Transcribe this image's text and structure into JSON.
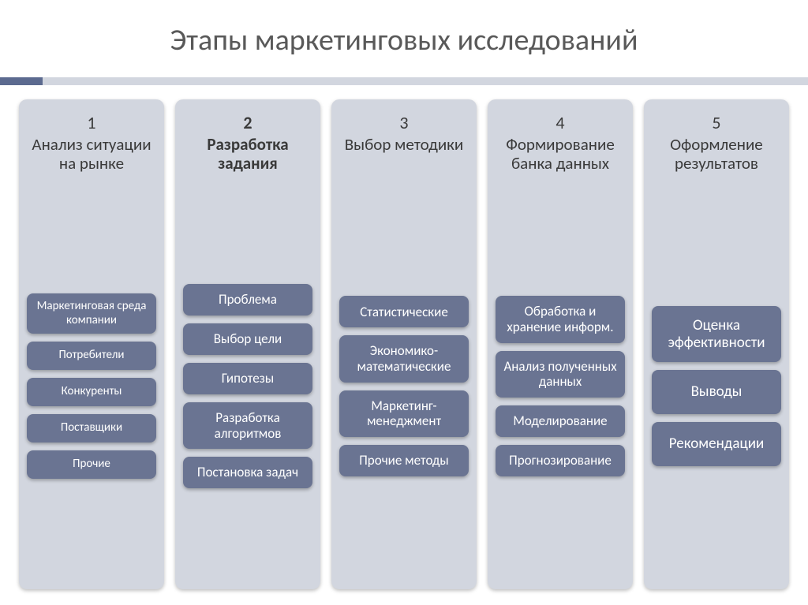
{
  "title": "Этапы маркетинговых исследований",
  "colors": {
    "accent": "#5c6a8f",
    "accent_light": "#d2d6df",
    "col_bg": "#d2d6df",
    "item_bg": "#6a7492",
    "item_text": "#ffffff",
    "title_color": "#595959",
    "head_text": "#3a3a3a"
  },
  "columns": [
    {
      "num": "1",
      "title": "Анализ ситуации на рынке",
      "bold": false,
      "item_size": "small",
      "items": [
        "Маркетинговая среда компании",
        "Потребители",
        "Конкуренты",
        "Поставщики",
        "Прочие"
      ]
    },
    {
      "num": "2",
      "title": "Разработка задания",
      "bold": true,
      "item_size": "normal",
      "items": [
        "Проблема",
        "Выбор цели",
        "Гипотезы",
        "Разработка алгоритмов",
        "Постановка задач"
      ]
    },
    {
      "num": "3",
      "title": "Выбор методики",
      "bold": false,
      "item_size": "normal",
      "items": [
        "Статистические",
        "Экономико-математические",
        "Маркетинг-менеджмент",
        "Прочие методы"
      ]
    },
    {
      "num": "4",
      "title": "Формирование банка данных",
      "bold": false,
      "item_size": "normal",
      "items": [
        "Обработка и хранение информ.",
        "Анализ полученных данных",
        "Моделирование",
        "Прогнозирование"
      ]
    },
    {
      "num": "5",
      "title": "Оформление результатов",
      "bold": false,
      "item_size": "large",
      "items": [
        "Оценка эффективности",
        "Выводы",
        "Рекомендации"
      ]
    }
  ]
}
